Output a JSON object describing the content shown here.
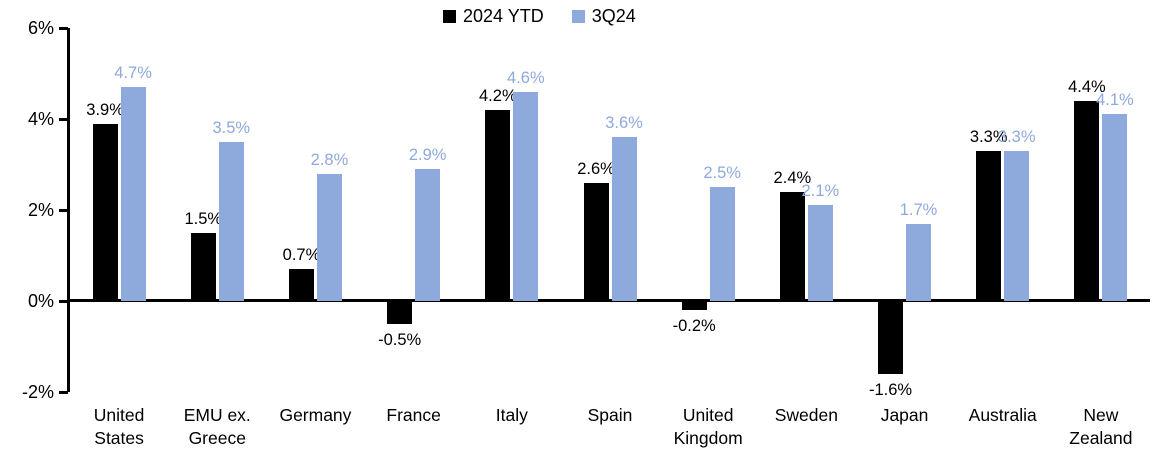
{
  "chart_data": {
    "type": "bar",
    "title": "",
    "xlabel": "",
    "ylabel": "",
    "grid": false,
    "background": "#FFFFFF",
    "legend_position": "top-center",
    "categories": [
      "United States",
      "EMU ex. Greece",
      "Germany",
      "France",
      "Italy",
      "Spain",
      "United Kingdom",
      "Sweden",
      "Japan",
      "Australia",
      "New Zealand"
    ],
    "category_display": [
      "United\nStates",
      "EMU ex.\nGreece",
      "Germany",
      "France",
      "Italy",
      "Spain",
      "United\nKingdom",
      "Sweden",
      "Japan",
      "Australia",
      "New\nZealand"
    ],
    "series": [
      {
        "name": "2024 YTD",
        "color": "#000000",
        "values": [
          3.9,
          1.5,
          0.7,
          -0.5,
          4.2,
          2.6,
          -0.2,
          2.4,
          -1.6,
          3.3,
          4.4
        ],
        "labels": [
          "3.9%",
          "1.5%",
          "0.7%",
          "-0.5%",
          "4.2%",
          "2.6%",
          "-0.2%",
          "2.4%",
          "-1.6%",
          "3.3%",
          "4.4%"
        ]
      },
      {
        "name": "3Q24",
        "color": "#8EA9DB",
        "values": [
          4.7,
          3.5,
          2.8,
          2.9,
          4.6,
          3.6,
          2.5,
          2.1,
          1.7,
          3.3,
          4.1
        ],
        "labels": [
          "4.7%",
          "3.5%",
          "2.8%",
          "2.9%",
          "4.6%",
          "3.6%",
          "2.5%",
          "2.1%",
          "1.7%",
          "3.3%",
          "4.1%"
        ]
      }
    ],
    "y_axis": {
      "min": -2,
      "max": 6,
      "tick_step": 2,
      "ticks": [
        {
          "label": "6%",
          "value": 6
        },
        {
          "label": "4%",
          "value": 4
        },
        {
          "label": "2%",
          "value": 2
        },
        {
          "label": "0%",
          "value": 0
        },
        {
          "label": "-2%",
          "value": -2
        }
      ]
    }
  }
}
